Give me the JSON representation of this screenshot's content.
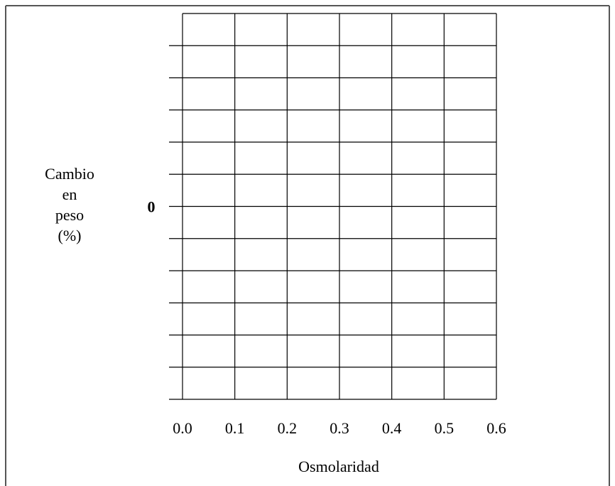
{
  "chart_data": {
    "type": "line",
    "title": "",
    "xlabel": "Osmolaridad",
    "ylabel_lines": [
      "Cambio",
      "en",
      "peso",
      "(%)"
    ],
    "x_ticks": [
      "0.0",
      "0.1",
      "0.2",
      "0.3",
      "0.4",
      "0.5",
      "0.6"
    ],
    "xlim": [
      0.0,
      0.6
    ],
    "y_tick_labels": [
      {
        "value": 0,
        "label": "0"
      }
    ],
    "y_divisions_above_zero": 6,
    "y_divisions_below_zero": 6,
    "grid": true,
    "series": [],
    "colors": {
      "grid": "#000000",
      "frame": "#555555",
      "background": "#ffffff"
    }
  }
}
